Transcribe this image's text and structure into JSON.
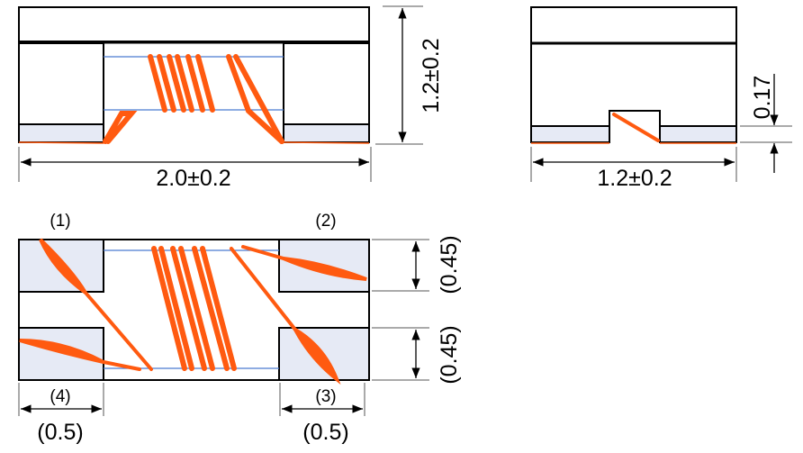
{
  "side_view": {
    "length_label": "2.0±0.2",
    "height_label": "1.2±0.2"
  },
  "end_view": {
    "width_label": "1.2±0.2",
    "pad_thickness_label": "0.17"
  },
  "bottom_view": {
    "terminal_labels": [
      "(1)",
      "(2)",
      "(3)",
      "(4)"
    ],
    "pad_width_left_label": "(0.5)",
    "pad_width_right_label": "(0.5)",
    "pad_height_top_label": "(0.45)",
    "pad_height_bottom_label": "(0.45)"
  },
  "colors": {
    "wire": "#ff5a10",
    "pad": "#e6eaf5",
    "core_line": "#4a7bd0"
  }
}
